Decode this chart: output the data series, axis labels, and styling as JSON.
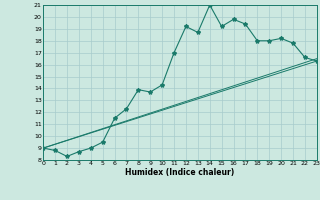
{
  "title": "",
  "xlabel": "Humidex (Indice chaleur)",
  "xlim": [
    0,
    23
  ],
  "ylim": [
    8,
    21
  ],
  "xticks": [
    0,
    1,
    2,
    3,
    4,
    5,
    6,
    7,
    8,
    9,
    10,
    11,
    12,
    13,
    14,
    15,
    16,
    17,
    18,
    19,
    20,
    21,
    22,
    23
  ],
  "yticks": [
    8,
    9,
    10,
    11,
    12,
    13,
    14,
    15,
    16,
    17,
    18,
    19,
    20,
    21
  ],
  "bg_color": "#cce8e0",
  "line_color": "#1a7a6a",
  "grid_color": "#a8cccc",
  "line1_x": [
    0,
    1,
    2,
    3,
    4,
    5,
    6,
    7,
    8,
    9,
    10,
    11,
    12,
    13,
    14,
    15,
    16,
    17,
    18,
    19,
    20,
    21,
    22,
    23
  ],
  "line1_y": [
    9.0,
    8.8,
    8.3,
    8.7,
    9.0,
    9.5,
    11.5,
    12.3,
    13.9,
    13.7,
    14.3,
    17.0,
    19.2,
    18.7,
    21.0,
    19.2,
    19.8,
    19.4,
    18.0,
    18.0,
    18.2,
    17.8,
    16.6,
    16.3
  ],
  "line2_y_start": 9.0,
  "line2_y_end": 16.3,
  "line3_y_start": 9.0,
  "line3_y_end": 16.5
}
